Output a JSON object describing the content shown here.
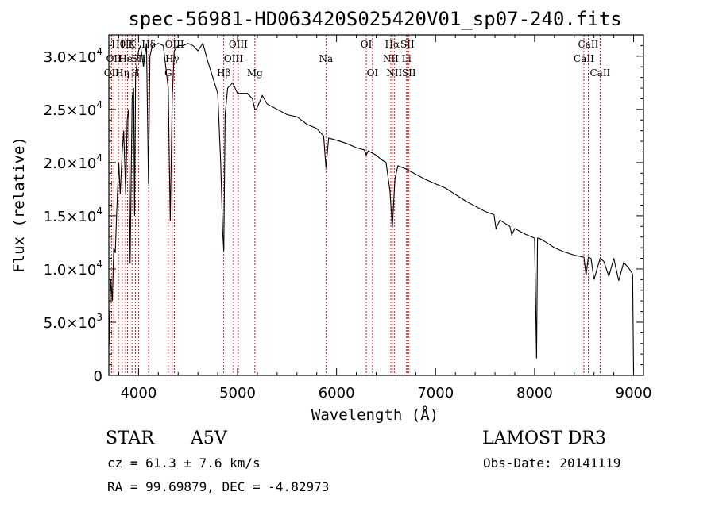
{
  "chart_data": {
    "type": "line",
    "title": "spec-56981-HD063420S025420V01_sp07-240.fits",
    "xlabel": "Wavelength (Å)",
    "ylabel": "Flux (relative)",
    "xlim": [
      3700,
      9100
    ],
    "ylim": [
      0,
      32000
    ],
    "xticks": [
      {
        "value": 4000,
        "label": "4000"
      },
      {
        "value": 5000,
        "label": "5000"
      },
      {
        "value": 6000,
        "label": "6000"
      },
      {
        "value": 7000,
        "label": "7000"
      },
      {
        "value": 8000,
        "label": "8000"
      },
      {
        "value": 9000,
        "label": "9000"
      }
    ],
    "yticks": [
      {
        "value": 0,
        "mant": "0",
        "exp": ""
      },
      {
        "value": 5000,
        "mant": "5.0×10",
        "exp": "3"
      },
      {
        "value": 10000,
        "mant": "1.0×10",
        "exp": "4"
      },
      {
        "value": 15000,
        "mant": "1.5×10",
        "exp": "4"
      },
      {
        "value": 20000,
        "mant": "2.0×10",
        "exp": "4"
      },
      {
        "value": 25000,
        "mant": "2.5×10",
        "exp": "4"
      },
      {
        "value": 30000,
        "mant": "3.0×10",
        "exp": "4"
      }
    ],
    "series": [
      {
        "name": "spectrum",
        "x": [
          3700,
          3720,
          3735,
          3750,
          3765,
          3780,
          3800,
          3815,
          3835,
          3850,
          3870,
          3885,
          3900,
          3915,
          3935,
          3950,
          3960,
          3970,
          3980,
          4000,
          4020,
          4050,
          4080,
          4100,
          4115,
          4140,
          4200,
          4250,
          4300,
          4320,
          4340,
          4360,
          4400,
          4450,
          4500,
          4550,
          4600,
          4650,
          4700,
          4750,
          4800,
          4830,
          4850,
          4861,
          4875,
          4900,
          4950,
          5000,
          5100,
          5150,
          5175,
          5190,
          5250,
          5300,
          5400,
          5500,
          5600,
          5700,
          5800,
          5870,
          5893,
          5920,
          6000,
          6100,
          6200,
          6280,
          6300,
          6320,
          6400,
          6450,
          6500,
          6540,
          6563,
          6590,
          6620,
          6700,
          6800,
          6900,
          7000,
          7100,
          7200,
          7300,
          7400,
          7500,
          7590,
          7610,
          7650,
          7700,
          7750,
          7770,
          7800,
          7900,
          8000,
          8020,
          8030,
          8045,
          8100,
          8200,
          8300,
          8400,
          8498,
          8520,
          8542,
          8570,
          8600,
          8662,
          8700,
          8750,
          8800,
          8850,
          8900,
          8950,
          8990,
          9000
        ],
        "values": [
          2500,
          9000,
          7000,
          12000,
          11500,
          15500,
          20000,
          17000,
          21000,
          23000,
          17000,
          24000,
          25000,
          10500,
          26000,
          27000,
          15000,
          28000,
          29000,
          30500,
          31000,
          29000,
          31200,
          18000,
          30000,
          31000,
          31200,
          31000,
          27000,
          14500,
          26000,
          30500,
          31000,
          31000,
          31200,
          31000,
          30500,
          31200,
          29500,
          28000,
          26500,
          20000,
          13500,
          11700,
          24500,
          27000,
          27500,
          26500,
          26500,
          26000,
          25000,
          25000,
          26300,
          25500,
          25000,
          24500,
          24300,
          23600,
          23200,
          22500,
          19500,
          22300,
          22100,
          21800,
          21400,
          21200,
          20700,
          21100,
          20700,
          20300,
          20000,
          17300,
          13900,
          18500,
          19700,
          19400,
          18900,
          18400,
          18000,
          17600,
          17000,
          16400,
          15900,
          15400,
          15100,
          13800,
          14600,
          14300,
          14000,
          13200,
          13800,
          13300,
          12900,
          1600,
          12900,
          12900,
          12600,
          12000,
          11600,
          11300,
          11100,
          9400,
          11100,
          11000,
          9000,
          11000,
          10700,
          9300,
          11000,
          8900,
          10600,
          10100,
          9500,
          300
        ]
      }
    ],
    "lines": [
      {
        "x": 3727,
        "label": "OII",
        "row": 2
      },
      {
        "x": 3750,
        "label": "OII",
        "row": 1
      },
      {
        "x": 3797,
        "label": "Hθ",
        "row": 0
      },
      {
        "x": 3835,
        "label": "Hη",
        "row": 2
      },
      {
        "x": 3869,
        "label": "He",
        "row": 1
      },
      {
        "x": 3889,
        "label": "Hζ",
        "row": 0
      },
      {
        "x": 3934,
        "label": "K",
        "row": 0
      },
      {
        "x": 3968,
        "label": "H",
        "row": 2
      },
      {
        "x": 4000,
        "label": "SII",
        "row": 1
      },
      {
        "x": 4102,
        "label": "Hδ",
        "row": 0
      },
      {
        "x": 4300,
        "label": "G",
        "row": 2
      },
      {
        "x": 4340,
        "label": "Hγ",
        "row": 1
      },
      {
        "x": 4363,
        "label": "OIII",
        "row": 0
      },
      {
        "x": 4861,
        "label": "Hβ",
        "row": 2
      },
      {
        "x": 4959,
        "label": "OIII",
        "row": 1
      },
      {
        "x": 5007,
        "label": "OIII",
        "row": 0
      },
      {
        "x": 5175,
        "label": "Mg",
        "row": 2
      },
      {
        "x": 5893,
        "label": "Na",
        "row": 1
      },
      {
        "x": 6300,
        "label": "OI",
        "row": 0
      },
      {
        "x": 6363,
        "label": "OI",
        "row": 2
      },
      {
        "x": 6548,
        "label": "NII",
        "row": 1
      },
      {
        "x": 6563,
        "label": "Hα",
        "row": 0
      },
      {
        "x": 6583,
        "label": "NII",
        "row": 2
      },
      {
        "x": 6707,
        "label": "Li",
        "row": 1
      },
      {
        "x": 6716,
        "label": "SII",
        "row": 0
      },
      {
        "x": 6731,
        "label": "SII",
        "row": 2
      },
      {
        "x": 8498,
        "label": "CaII",
        "row": 1
      },
      {
        "x": 8542,
        "label": "CaII",
        "row": 0
      },
      {
        "x": 8662,
        "label": "CaII",
        "row": 2
      }
    ]
  },
  "info": {
    "class": "STAR",
    "subclass": "A5V",
    "survey": "LAMOST DR3",
    "cz": "cz = 61.3 ± 7.6 km/s",
    "obs_date": "Obs-Date: 20141119",
    "radec": "RA =  99.69879, DEC =  -4.82973"
  },
  "colors": {
    "axis": "#000000",
    "spectrum": "#000000",
    "line_marker": "#cc0000"
  }
}
